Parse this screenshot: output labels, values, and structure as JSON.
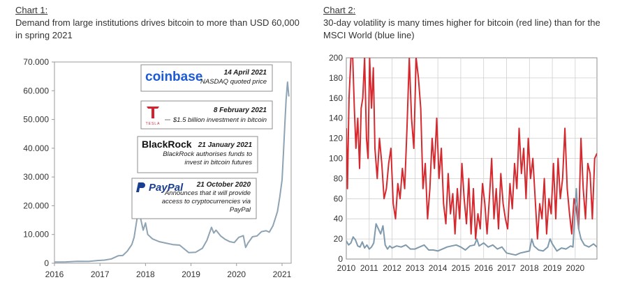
{
  "chart_data": [
    {
      "type": "line",
      "label": "Chart 1:",
      "title": "Demand from large institutions drives bitcoin to more than USD 60,000 in spring 2021",
      "xlabel": "",
      "ylabel": "",
      "ylim": [
        0,
        70000
      ],
      "xlim": [
        2016.0,
        2021.2
      ],
      "x_ticks": [
        2016,
        2017,
        2018,
        2019,
        2020,
        2021
      ],
      "y_ticks": [
        0,
        10000,
        20000,
        30000,
        40000,
        50000,
        60000,
        70000
      ],
      "y_tick_labels": [
        "0",
        "10.000",
        "20.000",
        "30.000",
        "40.000",
        "50.000",
        "60.000",
        "70.000"
      ],
      "grid": false,
      "line_color": "#8ea3b3",
      "series": [
        {
          "x": [
            2016.0,
            2016.25,
            2016.5,
            2016.75,
            2016.95,
            2017.1,
            2017.25,
            2017.4,
            2017.5,
            2017.6,
            2017.7,
            2017.75,
            2017.8,
            2017.85,
            2017.9,
            2017.95,
            2018.0,
            2018.05,
            2018.15,
            2018.3,
            2018.45,
            2018.6,
            2018.75,
            2018.85,
            2018.95,
            2019.1,
            2019.25,
            2019.35,
            2019.45,
            2019.5,
            2019.55,
            2019.65,
            2019.75,
            2019.85,
            2019.95,
            2020.05,
            2020.15,
            2020.2,
            2020.25,
            2020.35,
            2020.45,
            2020.55,
            2020.65,
            2020.72,
            2020.8,
            2020.85,
            2020.9,
            2020.95,
            2021.0,
            2021.03,
            2021.06,
            2021.09,
            2021.12,
            2021.15
          ],
          "y": [
            400,
            450,
            650,
            620,
            950,
            1100,
            1500,
            2600,
            2700,
            4200,
            6500,
            9000,
            14000,
            19000,
            15000,
            11500,
            14000,
            10000,
            8500,
            7500,
            7000,
            6500,
            6300,
            5000,
            3700,
            3800,
            5200,
            8000,
            12500,
            10500,
            11500,
            9500,
            8300,
            7500,
            7200,
            9000,
            9600,
            5500,
            7000,
            9200,
            9500,
            11000,
            11300,
            10800,
            13000,
            15500,
            18000,
            23000,
            29000,
            38000,
            48000,
            57000,
            63000,
            58000
          ]
        }
      ],
      "annotations": [
        {
          "logo": "coinbase",
          "date": "14 April 2021",
          "lines": [
            "NASDAQ quoted price"
          ]
        },
        {
          "logo": "TESLA",
          "date": "8 February 2021",
          "lines": [
            "$1.5 billion investment in bitcoin"
          ]
        },
        {
          "logo": "BlackRock",
          "date": "21 January 2021",
          "lines": [
            "BlackRock authorises funds to",
            "invest in bitcoin futures"
          ]
        },
        {
          "logo": "PayPal",
          "date": "21 October 2020",
          "lines": [
            "Announces that it will provide",
            "access to cryptocurrencies via",
            "PayPal"
          ]
        }
      ]
    },
    {
      "type": "line",
      "label": "Chart 2:",
      "title": "30-day volatility is many times higher for bitcoin (red line) than for the MSCI World (blue line)",
      "xlabel": "",
      "ylabel": "",
      "ylim": [
        0,
        200
      ],
      "xlim": [
        2010.0,
        2020.95
      ],
      "x_ticks": [
        2010,
        2011,
        2012,
        2013,
        2014,
        2015,
        2016,
        2017,
        2018,
        2019,
        2020
      ],
      "y_ticks": [
        0,
        20,
        40,
        60,
        80,
        100,
        120,
        140,
        160,
        180,
        200
      ],
      "grid": true,
      "series": [
        {
          "color": "#d42a2f",
          "x": [
            2010.0,
            2010.05,
            2010.12,
            2010.2,
            2010.28,
            2010.35,
            2010.42,
            2010.5,
            2010.58,
            2010.65,
            2010.72,
            2010.8,
            2010.88,
            2010.95,
            2011.02,
            2011.1,
            2011.18,
            2011.25,
            2011.35,
            2011.45,
            2011.55,
            2011.65,
            2011.75,
            2011.85,
            2011.95,
            2012.05,
            2012.15,
            2012.25,
            2012.35,
            2012.45,
            2012.55,
            2012.65,
            2012.75,
            2012.85,
            2012.95,
            2013.05,
            2013.15,
            2013.25,
            2013.35,
            2013.45,
            2013.55,
            2013.65,
            2013.75,
            2013.85,
            2013.95,
            2014.05,
            2014.15,
            2014.25,
            2014.35,
            2014.45,
            2014.55,
            2014.65,
            2014.75,
            2014.85,
            2014.95,
            2015.05,
            2015.15,
            2015.25,
            2015.35,
            2015.45,
            2015.55,
            2015.65,
            2015.75,
            2015.85,
            2015.95,
            2016.05,
            2016.15,
            2016.25,
            2016.35,
            2016.45,
            2016.55,
            2016.65,
            2016.75,
            2016.85,
            2016.95,
            2017.05,
            2017.15,
            2017.25,
            2017.35,
            2017.45,
            2017.55,
            2017.65,
            2017.75,
            2017.85,
            2017.95,
            2018.05,
            2018.15,
            2018.25,
            2018.35,
            2018.45,
            2018.55,
            2018.65,
            2018.75,
            2018.85,
            2018.95,
            2019.05,
            2019.15,
            2019.25,
            2019.35,
            2019.45,
            2019.55,
            2019.65,
            2019.75,
            2019.85,
            2019.95,
            2020.05,
            2020.15,
            2020.25,
            2020.35,
            2020.45,
            2020.55,
            2020.65,
            2020.75,
            2020.85,
            2020.95
          ],
          "y": [
            130,
            70,
            160,
            200,
            200,
            150,
            110,
            140,
            90,
            150,
            160,
            200,
            120,
            100,
            200,
            150,
            190,
            110,
            80,
            120,
            95,
            60,
            70,
            95,
            110,
            55,
            40,
            75,
            60,
            90,
            70,
            130,
            200,
            140,
            110,
            200,
            180,
            150,
            70,
            95,
            40,
            70,
            120,
            90,
            140,
            80,
            110,
            55,
            35,
            85,
            45,
            65,
            25,
            70,
            40,
            95,
            60,
            35,
            80,
            25,
            70,
            20,
            45,
            30,
            75,
            55,
            25,
            60,
            100,
            40,
            70,
            30,
            85,
            55,
            40,
            30,
            75,
            50,
            95,
            70,
            130,
            85,
            110,
            60,
            120,
            80,
            100,
            60,
            20,
            55,
            40,
            80,
            25,
            60,
            45,
            95,
            40,
            100,
            60,
            80,
            130,
            70,
            45,
            25,
            60,
            50,
            30,
            120,
            70,
            40,
            95,
            85,
            40,
            100,
            105
          ]
        },
        {
          "color": "#7f99ad",
          "x": [
            2010.0,
            2010.1,
            2010.2,
            2010.3,
            2010.4,
            2010.5,
            2010.6,
            2010.7,
            2010.8,
            2010.9,
            2011.0,
            2011.1,
            2011.2,
            2011.3,
            2011.4,
            2011.5,
            2011.6,
            2011.7,
            2011.8,
            2011.9,
            2012.0,
            2012.2,
            2012.4,
            2012.6,
            2012.8,
            2013.0,
            2013.2,
            2013.4,
            2013.6,
            2013.8,
            2014.0,
            2014.2,
            2014.4,
            2014.6,
            2014.8,
            2015.0,
            2015.2,
            2015.4,
            2015.6,
            2015.7,
            2015.8,
            2016.0,
            2016.2,
            2016.4,
            2016.6,
            2016.8,
            2017.0,
            2017.2,
            2017.4,
            2017.6,
            2017.8,
            2018.0,
            2018.1,
            2018.2,
            2018.4,
            2018.6,
            2018.8,
            2018.9,
            2019.0,
            2019.2,
            2019.4,
            2019.6,
            2019.8,
            2019.9,
            2020.05,
            2020.15,
            2020.25,
            2020.4,
            2020.6,
            2020.8,
            2020.95
          ],
          "y": [
            18,
            14,
            16,
            22,
            19,
            13,
            12,
            17,
            11,
            14,
            10,
            12,
            16,
            35,
            30,
            25,
            33,
            14,
            10,
            13,
            11,
            13,
            12,
            14,
            10,
            10,
            12,
            14,
            9,
            9,
            8,
            10,
            12,
            13,
            14,
            12,
            9,
            13,
            14,
            20,
            13,
            16,
            12,
            14,
            10,
            12,
            6,
            5,
            4,
            6,
            7,
            8,
            20,
            13,
            9,
            8,
            12,
            20,
            15,
            8,
            11,
            10,
            13,
            12,
            70,
            30,
            20,
            14,
            12,
            15,
            12
          ]
        }
      ]
    }
  ]
}
